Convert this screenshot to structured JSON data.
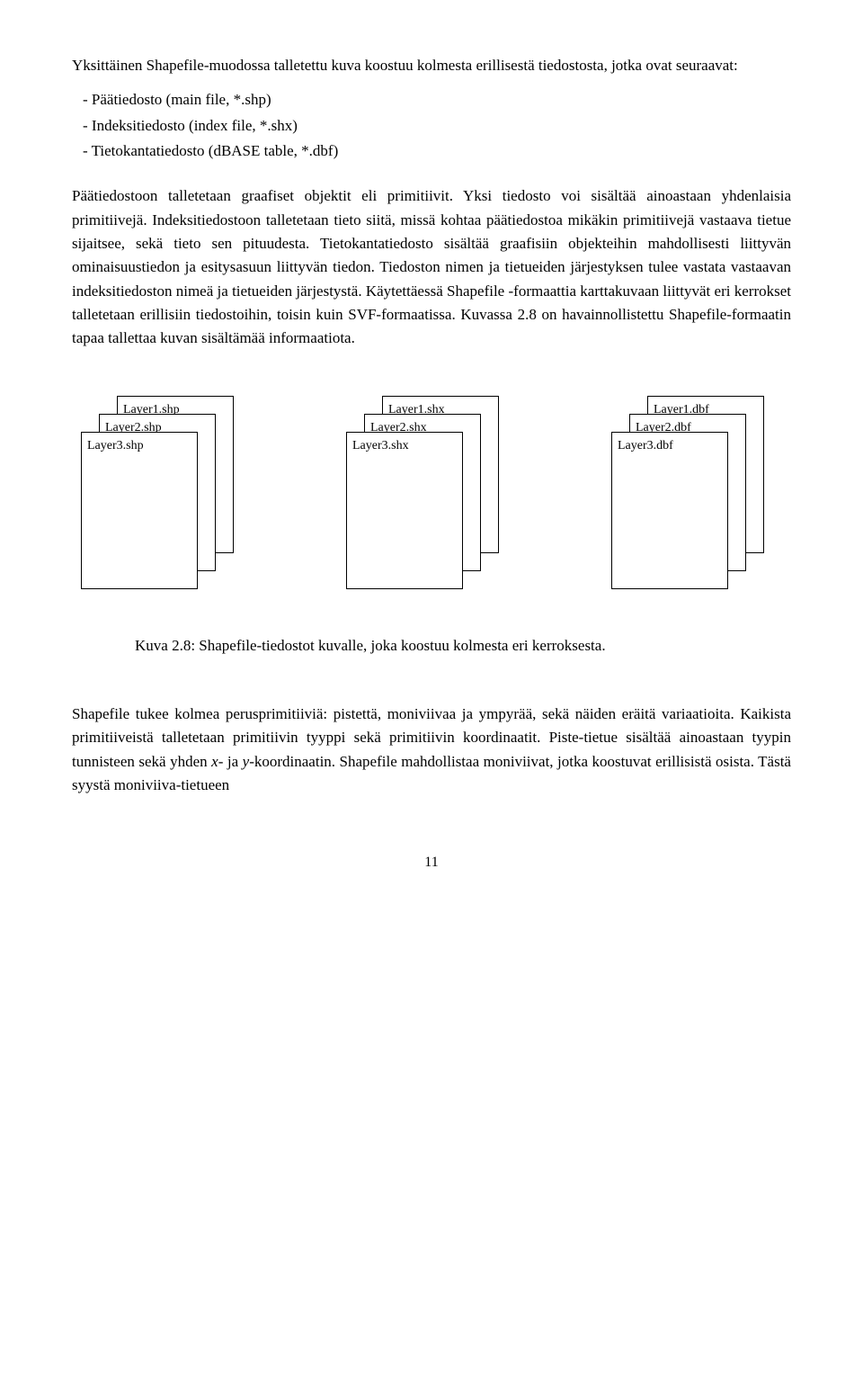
{
  "para1": "Yksittäinen Shapefile-muodossa talletettu kuva koostuu kolmesta erillisestä tiedostosta, jotka ovat seuraavat:",
  "bullets": [
    "- Päätiedosto (main file, *.shp)",
    "- Indeksitiedosto (index file, *.shx)",
    "- Tietokantatiedosto (dBASE table, *.dbf)"
  ],
  "para2": "Päätiedostoon talletetaan graafiset objektit eli primitiivit. Yksi tiedosto voi sisältää ainoastaan yhdenlaisia primitiivejä. Indeksitiedostoon talletetaan tieto siitä, missä kohtaa päätiedostoa mikäkin primitiivejä vastaava tietue sijaitsee, sekä tieto sen pituudesta. Tietokantatiedosto sisältää graafisiin objekteihin mahdollisesti liittyvän ominaisuustiedon ja esitysasuun liittyvän tiedon. Tiedoston nimen ja tietueiden järjestyksen tulee vastata vastaavan indeksitiedoston nimeä ja tietueiden järjestystä. Käytettäessä Shapefile -formaattia karttakuvaan liittyvät eri kerrokset talletetaan erillisiin tiedostoihin, toisin kuin SVF-formaatissa. Kuvassa 2.8 on havainnollistettu Shapefile-formaatin tapaa tallettaa kuvan sisältämää informaatiota.",
  "figure": {
    "stacks": [
      {
        "labels": [
          "Layer1.shp",
          "Layer2.shp",
          "Layer3.shp"
        ]
      },
      {
        "labels": [
          "Layer1.shx",
          "Layer2.shx",
          "Layer3.shx"
        ]
      },
      {
        "labels": [
          "Layer1.dbf",
          "Layer2.dbf",
          "Layer3.dbf"
        ]
      }
    ]
  },
  "caption": "Kuva 2.8: Shapefile-tiedostot kuvalle, joka koostuu kolmesta eri kerroksesta.",
  "para3_a": "Shapefile tukee kolmea perusprimitiiviä: pistettä, moniviivaa ja ympyrää, sekä näiden eräitä variaatioita. Kaikista primitiiveistä talletetaan primitiivin tyyppi sekä primitiivin koordinaatit. Piste-tietue sisältää ainoastaan tyypin tunnisteen sekä yhden ",
  "para3_x": "x",
  "para3_mid": "- ja ",
  "para3_y": "y",
  "para3_b": "-koordinaatin. Shapefile mahdollistaa moniviivat, jotka koostuvat erillisistä osista. Tästä syystä moniviiva-tietueen",
  "pagenum": "11"
}
